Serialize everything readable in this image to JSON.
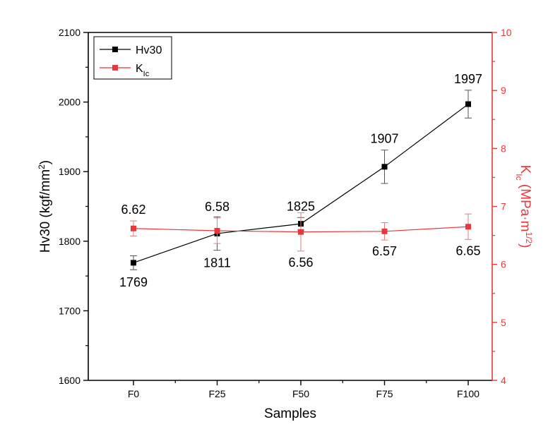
{
  "chart_data": {
    "type": "line",
    "categories": [
      "F0",
      "F25",
      "F50",
      "F75",
      "F100"
    ],
    "xlabel": "Samples",
    "y_left": {
      "label_main": "Hv30 (kgf/mm",
      "label_sup": "2",
      "label_end": ")",
      "range": [
        1600,
        2100
      ],
      "ticks": [
        "1600",
        "1700",
        "1800",
        "1900",
        "2000",
        "2100"
      ],
      "color": "#000000"
    },
    "y_right": {
      "label_main": "K",
      "label_sub": "Ic",
      "label_mid": " (MPa·m",
      "label_sup": "1/2",
      "label_end": ")",
      "range": [
        4,
        10
      ],
      "ticks": [
        "4",
        "5",
        "6",
        "7",
        "8",
        "9",
        "10"
      ],
      "color": "#e8383b"
    },
    "series": [
      {
        "name": "Hv30",
        "axis": "left",
        "color": "#000000",
        "values": [
          1769,
          1811,
          1825,
          1907,
          1997
        ],
        "errors": [
          10,
          24,
          9,
          24,
          20
        ],
        "labels": [
          "1769",
          "1811",
          "1825",
          "1907",
          "1997"
        ]
      },
      {
        "name_main": "K",
        "name_sub": "Ic",
        "axis": "right",
        "color": "#e8383b",
        "values": [
          6.62,
          6.58,
          6.56,
          6.57,
          6.65
        ],
        "errors": [
          0.13,
          0.22,
          0.33,
          0.15,
          0.22
        ],
        "labels": [
          "6.62",
          "6.58",
          "6.56",
          "6.57",
          "6.65"
        ]
      }
    ],
    "legend_position": "top-left"
  }
}
